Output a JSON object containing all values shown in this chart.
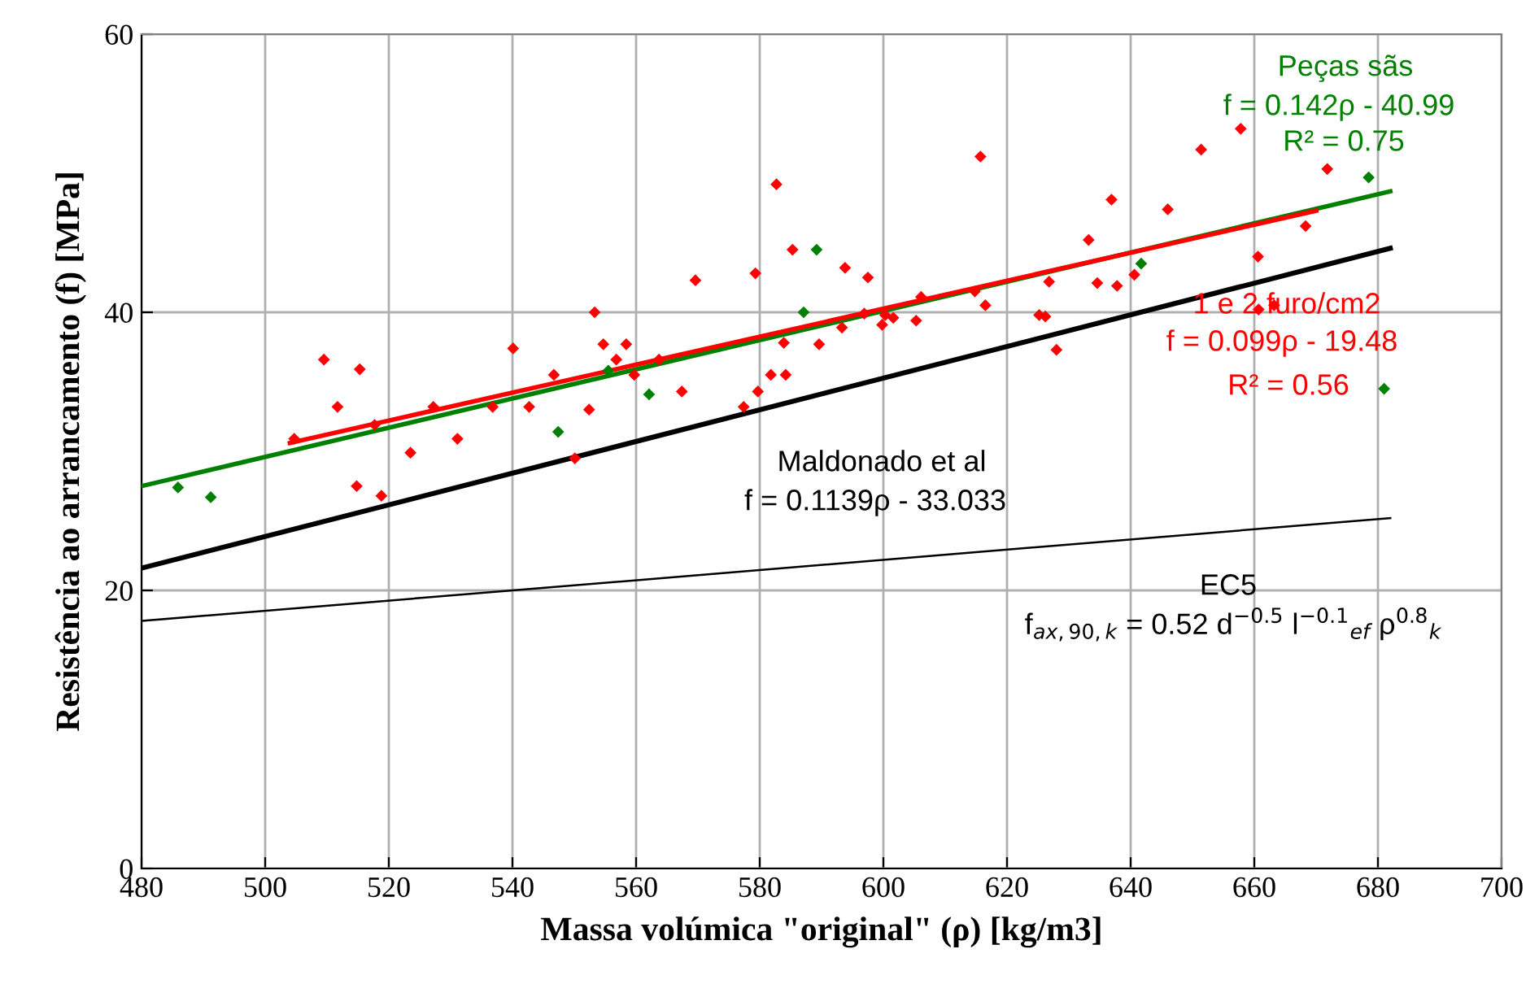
{
  "chart_data": {
    "type": "scatter",
    "xlabel": "Massa volúmica \"original\" (ρ) [kg/m3]",
    "ylabel": "Resistência ao arrancamento (f) [MPa]",
    "xlim": [
      480,
      700
    ],
    "xticks": [
      480,
      500,
      520,
      540,
      560,
      580,
      600,
      620,
      640,
      660,
      680,
      700
    ],
    "ylim": [
      0,
      60
    ],
    "yticks": [
      0,
      20,
      40,
      60
    ],
    "grid": true,
    "legend": false,
    "series": [
      {
        "marker": "diamond",
        "color": "#008000",
        "x": [
          485.9,
          491.2,
          547.4,
          555.5,
          562.1,
          587.1,
          589.2,
          641.7,
          678.5,
          681.0
        ],
        "values": [
          27.4,
          26.7,
          31.4,
          35.8,
          34.1,
          40.0,
          44.5,
          43.5,
          49.7,
          34.5
        ]
      },
      {
        "marker": "diamond",
        "color": "#ff0000",
        "x": [
          504.7,
          509.5,
          515.3,
          511.7,
          514.8,
          518.8,
          517.7,
          523.5,
          527.2,
          531.1,
          536.8,
          540.1,
          542.7,
          546.7,
          550.1,
          552.4,
          553.3,
          554.7,
          556.8,
          558.4,
          559.7,
          563.7,
          567.4,
          569.6,
          577.4,
          579.7,
          579.3,
          582.7,
          581.8,
          584.2,
          583.9,
          585.3,
          589.6,
          593.8,
          593.3,
          597.5,
          596.9,
          599.8,
          600.3,
          601.6,
          605.3,
          606.1,
          615.7,
          614.8,
          616.5,
          625.2,
          626.2,
          626.8,
          628.0,
          633.2,
          634.6,
          636.9,
          637.8,
          640.6,
          646.0,
          651.4,
          657.8,
          660.6,
          660.7,
          663.2,
          668.3,
          671.8
        ],
        "values": [
          30.9,
          36.6,
          35.9,
          33.2,
          27.5,
          26.8,
          31.9,
          29.9,
          33.2,
          30.9,
          33.2,
          37.4,
          33.2,
          35.5,
          29.5,
          33.0,
          40.0,
          37.7,
          36.6,
          37.7,
          35.5,
          36.6,
          34.3,
          42.3,
          33.2,
          34.3,
          42.8,
          49.2,
          35.5,
          35.5,
          37.8,
          44.5,
          37.7,
          43.2,
          38.9,
          42.5,
          39.9,
          39.1,
          39.8,
          39.6,
          39.4,
          41.1,
          51.2,
          41.5,
          40.5,
          39.8,
          39.7,
          42.2,
          37.3,
          45.2,
          42.1,
          48.1,
          41.9,
          42.7,
          47.4,
          51.7,
          53.2,
          44.0,
          40.2,
          40.5,
          46.2,
          50.3
        ]
      },
      {
        "type": "line",
        "marker": "none",
        "name": "Peças sãs",
        "color": "#008000",
        "x": [
          480,
          682
        ],
        "values": [
          27.5,
          48.7
        ]
      },
      {
        "type": "line",
        "marker": "none",
        "name": "1 e 2 furo/cm2",
        "color": "#ff0000",
        "x": [
          504,
          670
        ],
        "values": [
          30.6,
          47.3
        ]
      },
      {
        "type": "line",
        "marker": "none",
        "name": "Maldonado et al",
        "color": "#000000",
        "x": [
          480,
          682
        ],
        "values": [
          21.6,
          44.6
        ]
      },
      {
        "type": "line",
        "marker": "none",
        "name": "EC5",
        "color": "#000000",
        "x": [
          480,
          682
        ],
        "values": [
          17.8,
          25.2
        ]
      }
    ],
    "annotations": [
      "f = 0.142ρ - 40.99",
      "R² = 0.75",
      "f = 0.099ρ - 19.48",
      "R² = 0.56",
      "f = 0.1139ρ - 33.033",
      "f$_{ax,90,k}$ = 0.52 d$^{−0.5}$ l$^{−0.1}$$_{ef}$ ρ$^{0.8}$$_{k}$"
    ]
  }
}
